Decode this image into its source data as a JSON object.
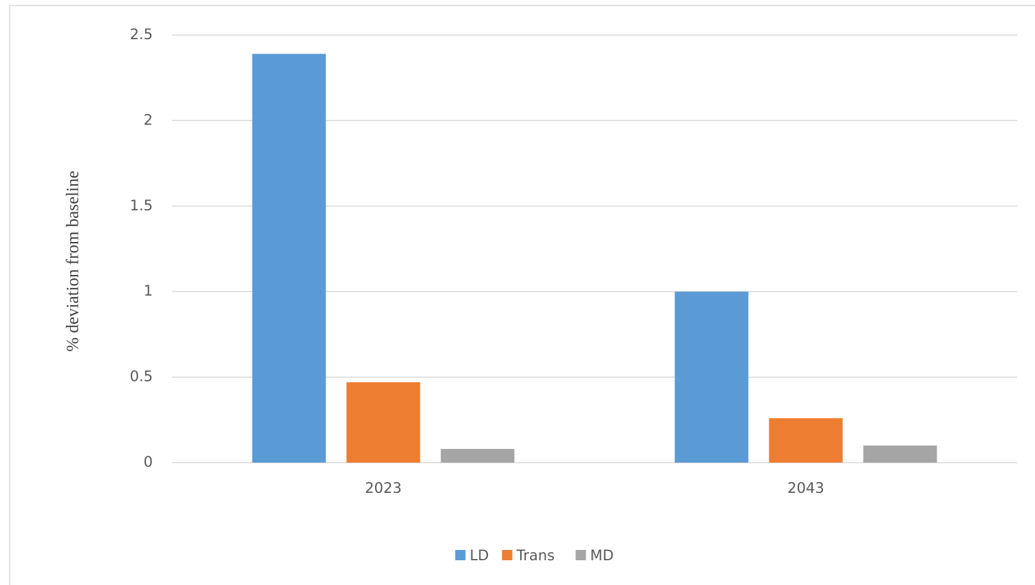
{
  "chart_data": {
    "type": "bar",
    "y_label": "% deviation from baseline",
    "categories": [
      "2023",
      "2043"
    ],
    "series": [
      {
        "name": "LD",
        "color": "#5b9bd5",
        "values": [
          2.39,
          1.0
        ]
      },
      {
        "name": "Trans",
        "color": "#ed7d31",
        "values": [
          0.47,
          0.26
        ]
      },
      {
        "name": "MD",
        "color": "#a5a5a5",
        "values": [
          0.08,
          0.1
        ]
      }
    ],
    "ylim": [
      0,
      2.5
    ],
    "yticks": [
      0,
      0.5,
      1,
      1.5,
      2,
      2.5
    ],
    "grid": true,
    "legend": "bottom"
  }
}
